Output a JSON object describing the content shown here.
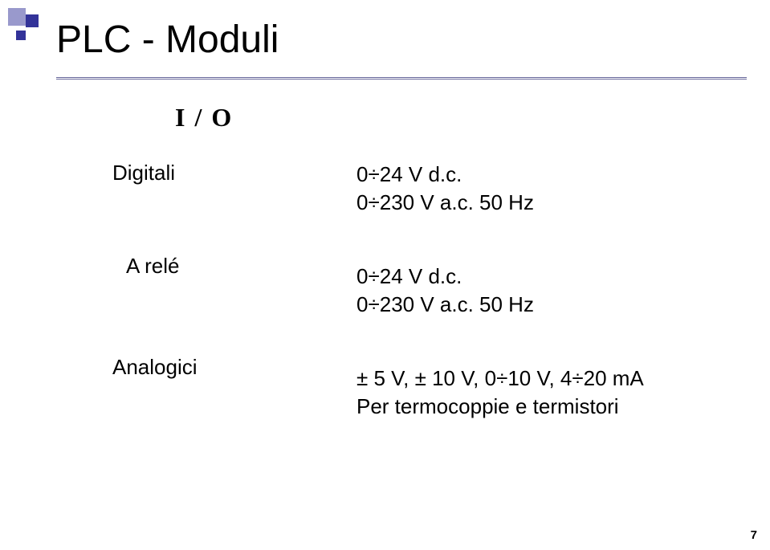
{
  "title": "PLC - Moduli",
  "subtitle": "I / O",
  "rows": {
    "digitali": {
      "label": "Digitali",
      "line1": "0÷24 V d.c.",
      "line2": "0÷230 V a.c. 50 Hz"
    },
    "rele": {
      "label": "A relé",
      "line1": "0÷24 V d.c.",
      "line2": "0÷230 V a.c. 50 Hz"
    },
    "analogici": {
      "label": "Analogici",
      "line1": "± 5 V, ± 10 V, 0÷10 V, 4÷20 mA",
      "line2": "Per termocoppie e termistori"
    }
  },
  "page_number": "7",
  "colors": {
    "title_text": "#000000",
    "body_text": "#000000",
    "underline": "#666699",
    "deco_light": "#9999cc",
    "deco_dark": "#333399",
    "background": "#ffffff"
  },
  "fonts": {
    "title_family": "Arial",
    "title_size_pt": 36,
    "subtitle_family": "Times New Roman",
    "subtitle_size_pt": 24,
    "body_family": "Arial",
    "body_size_pt": 20,
    "page_number_size_pt": 11
  }
}
